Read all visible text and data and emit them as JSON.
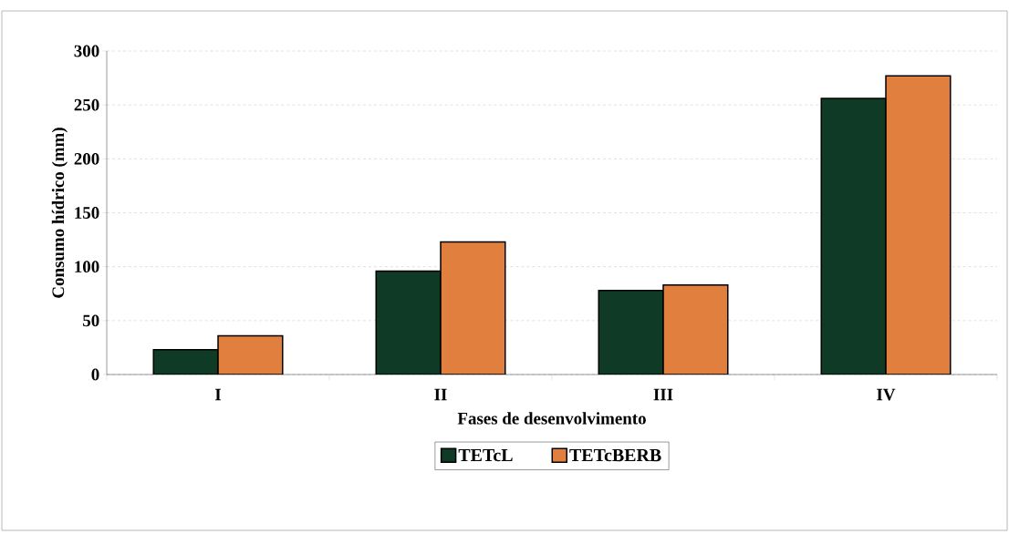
{
  "chart_data": {
    "type": "bar",
    "xlabel": "Fases de desenvolvimento",
    "ylabel": "Consumo hídrico (mm)",
    "categories": [
      "I",
      "II",
      "III",
      "IV"
    ],
    "series": [
      {
        "name": "TETcL",
        "color": "#0f3a26",
        "values": [
          23,
          96,
          78,
          256
        ]
      },
      {
        "name": "TETcBERB",
        "color": "#e07f3e",
        "values": [
          36,
          123,
          83,
          277
        ]
      }
    ],
    "ylim": [
      0,
      300
    ],
    "yticks": [
      0,
      50,
      100,
      150,
      200,
      250,
      300
    ],
    "grid": "y",
    "legend": "bottom"
  }
}
